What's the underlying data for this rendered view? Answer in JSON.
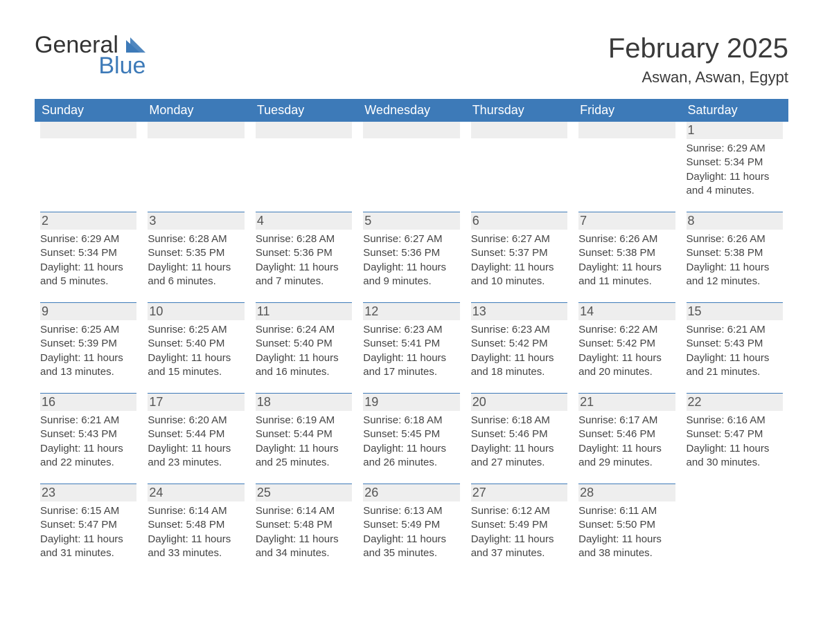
{
  "colors": {
    "header_bg": "#3d7ab8",
    "header_text": "#ffffff",
    "daynum_bg": "#eeeeee",
    "daynum_border_top": "#3d7ab8",
    "body_bg": "#ffffff",
    "text": "#333333",
    "logo_accent": "#3d7ab8"
  },
  "fonts": {
    "family": "Arial, Helvetica, sans-serif",
    "title_size_pt": 30,
    "location_size_pt": 16,
    "weekday_size_pt": 14,
    "daynum_size_pt": 14,
    "detail_size_pt": 11
  },
  "logo": {
    "line1": "General",
    "line2": "Blue"
  },
  "title": "February 2025",
  "location": "Aswan, Aswan, Egypt",
  "weekdays": [
    "Sunday",
    "Monday",
    "Tuesday",
    "Wednesday",
    "Thursday",
    "Friday",
    "Saturday"
  ],
  "grid": {
    "cols": 7,
    "rows": 5,
    "first_day_col_index": 6
  },
  "days": [
    {
      "n": 1,
      "sunrise": "6:29 AM",
      "sunset": "5:34 PM",
      "daylight": "11 hours and 4 minutes."
    },
    {
      "n": 2,
      "sunrise": "6:29 AM",
      "sunset": "5:34 PM",
      "daylight": "11 hours and 5 minutes."
    },
    {
      "n": 3,
      "sunrise": "6:28 AM",
      "sunset": "5:35 PM",
      "daylight": "11 hours and 6 minutes."
    },
    {
      "n": 4,
      "sunrise": "6:28 AM",
      "sunset": "5:36 PM",
      "daylight": "11 hours and 7 minutes."
    },
    {
      "n": 5,
      "sunrise": "6:27 AM",
      "sunset": "5:36 PM",
      "daylight": "11 hours and 9 minutes."
    },
    {
      "n": 6,
      "sunrise": "6:27 AM",
      "sunset": "5:37 PM",
      "daylight": "11 hours and 10 minutes."
    },
    {
      "n": 7,
      "sunrise": "6:26 AM",
      "sunset": "5:38 PM",
      "daylight": "11 hours and 11 minutes."
    },
    {
      "n": 8,
      "sunrise": "6:26 AM",
      "sunset": "5:38 PM",
      "daylight": "11 hours and 12 minutes."
    },
    {
      "n": 9,
      "sunrise": "6:25 AM",
      "sunset": "5:39 PM",
      "daylight": "11 hours and 13 minutes."
    },
    {
      "n": 10,
      "sunrise": "6:25 AM",
      "sunset": "5:40 PM",
      "daylight": "11 hours and 15 minutes."
    },
    {
      "n": 11,
      "sunrise": "6:24 AM",
      "sunset": "5:40 PM",
      "daylight": "11 hours and 16 minutes."
    },
    {
      "n": 12,
      "sunrise": "6:23 AM",
      "sunset": "5:41 PM",
      "daylight": "11 hours and 17 minutes."
    },
    {
      "n": 13,
      "sunrise": "6:23 AM",
      "sunset": "5:42 PM",
      "daylight": "11 hours and 18 minutes."
    },
    {
      "n": 14,
      "sunrise": "6:22 AM",
      "sunset": "5:42 PM",
      "daylight": "11 hours and 20 minutes."
    },
    {
      "n": 15,
      "sunrise": "6:21 AM",
      "sunset": "5:43 PM",
      "daylight": "11 hours and 21 minutes."
    },
    {
      "n": 16,
      "sunrise": "6:21 AM",
      "sunset": "5:43 PM",
      "daylight": "11 hours and 22 minutes."
    },
    {
      "n": 17,
      "sunrise": "6:20 AM",
      "sunset": "5:44 PM",
      "daylight": "11 hours and 23 minutes."
    },
    {
      "n": 18,
      "sunrise": "6:19 AM",
      "sunset": "5:44 PM",
      "daylight": "11 hours and 25 minutes."
    },
    {
      "n": 19,
      "sunrise": "6:18 AM",
      "sunset": "5:45 PM",
      "daylight": "11 hours and 26 minutes."
    },
    {
      "n": 20,
      "sunrise": "6:18 AM",
      "sunset": "5:46 PM",
      "daylight": "11 hours and 27 minutes."
    },
    {
      "n": 21,
      "sunrise": "6:17 AM",
      "sunset": "5:46 PM",
      "daylight": "11 hours and 29 minutes."
    },
    {
      "n": 22,
      "sunrise": "6:16 AM",
      "sunset": "5:47 PM",
      "daylight": "11 hours and 30 minutes."
    },
    {
      "n": 23,
      "sunrise": "6:15 AM",
      "sunset": "5:47 PM",
      "daylight": "11 hours and 31 minutes."
    },
    {
      "n": 24,
      "sunrise": "6:14 AM",
      "sunset": "5:48 PM",
      "daylight": "11 hours and 33 minutes."
    },
    {
      "n": 25,
      "sunrise": "6:14 AM",
      "sunset": "5:48 PM",
      "daylight": "11 hours and 34 minutes."
    },
    {
      "n": 26,
      "sunrise": "6:13 AM",
      "sunset": "5:49 PM",
      "daylight": "11 hours and 35 minutes."
    },
    {
      "n": 27,
      "sunrise": "6:12 AM",
      "sunset": "5:49 PM",
      "daylight": "11 hours and 37 minutes."
    },
    {
      "n": 28,
      "sunrise": "6:11 AM",
      "sunset": "5:50 PM",
      "daylight": "11 hours and 38 minutes."
    }
  ],
  "labels": {
    "sunrise_prefix": "Sunrise: ",
    "sunset_prefix": "Sunset: ",
    "daylight_prefix": "Daylight: "
  }
}
